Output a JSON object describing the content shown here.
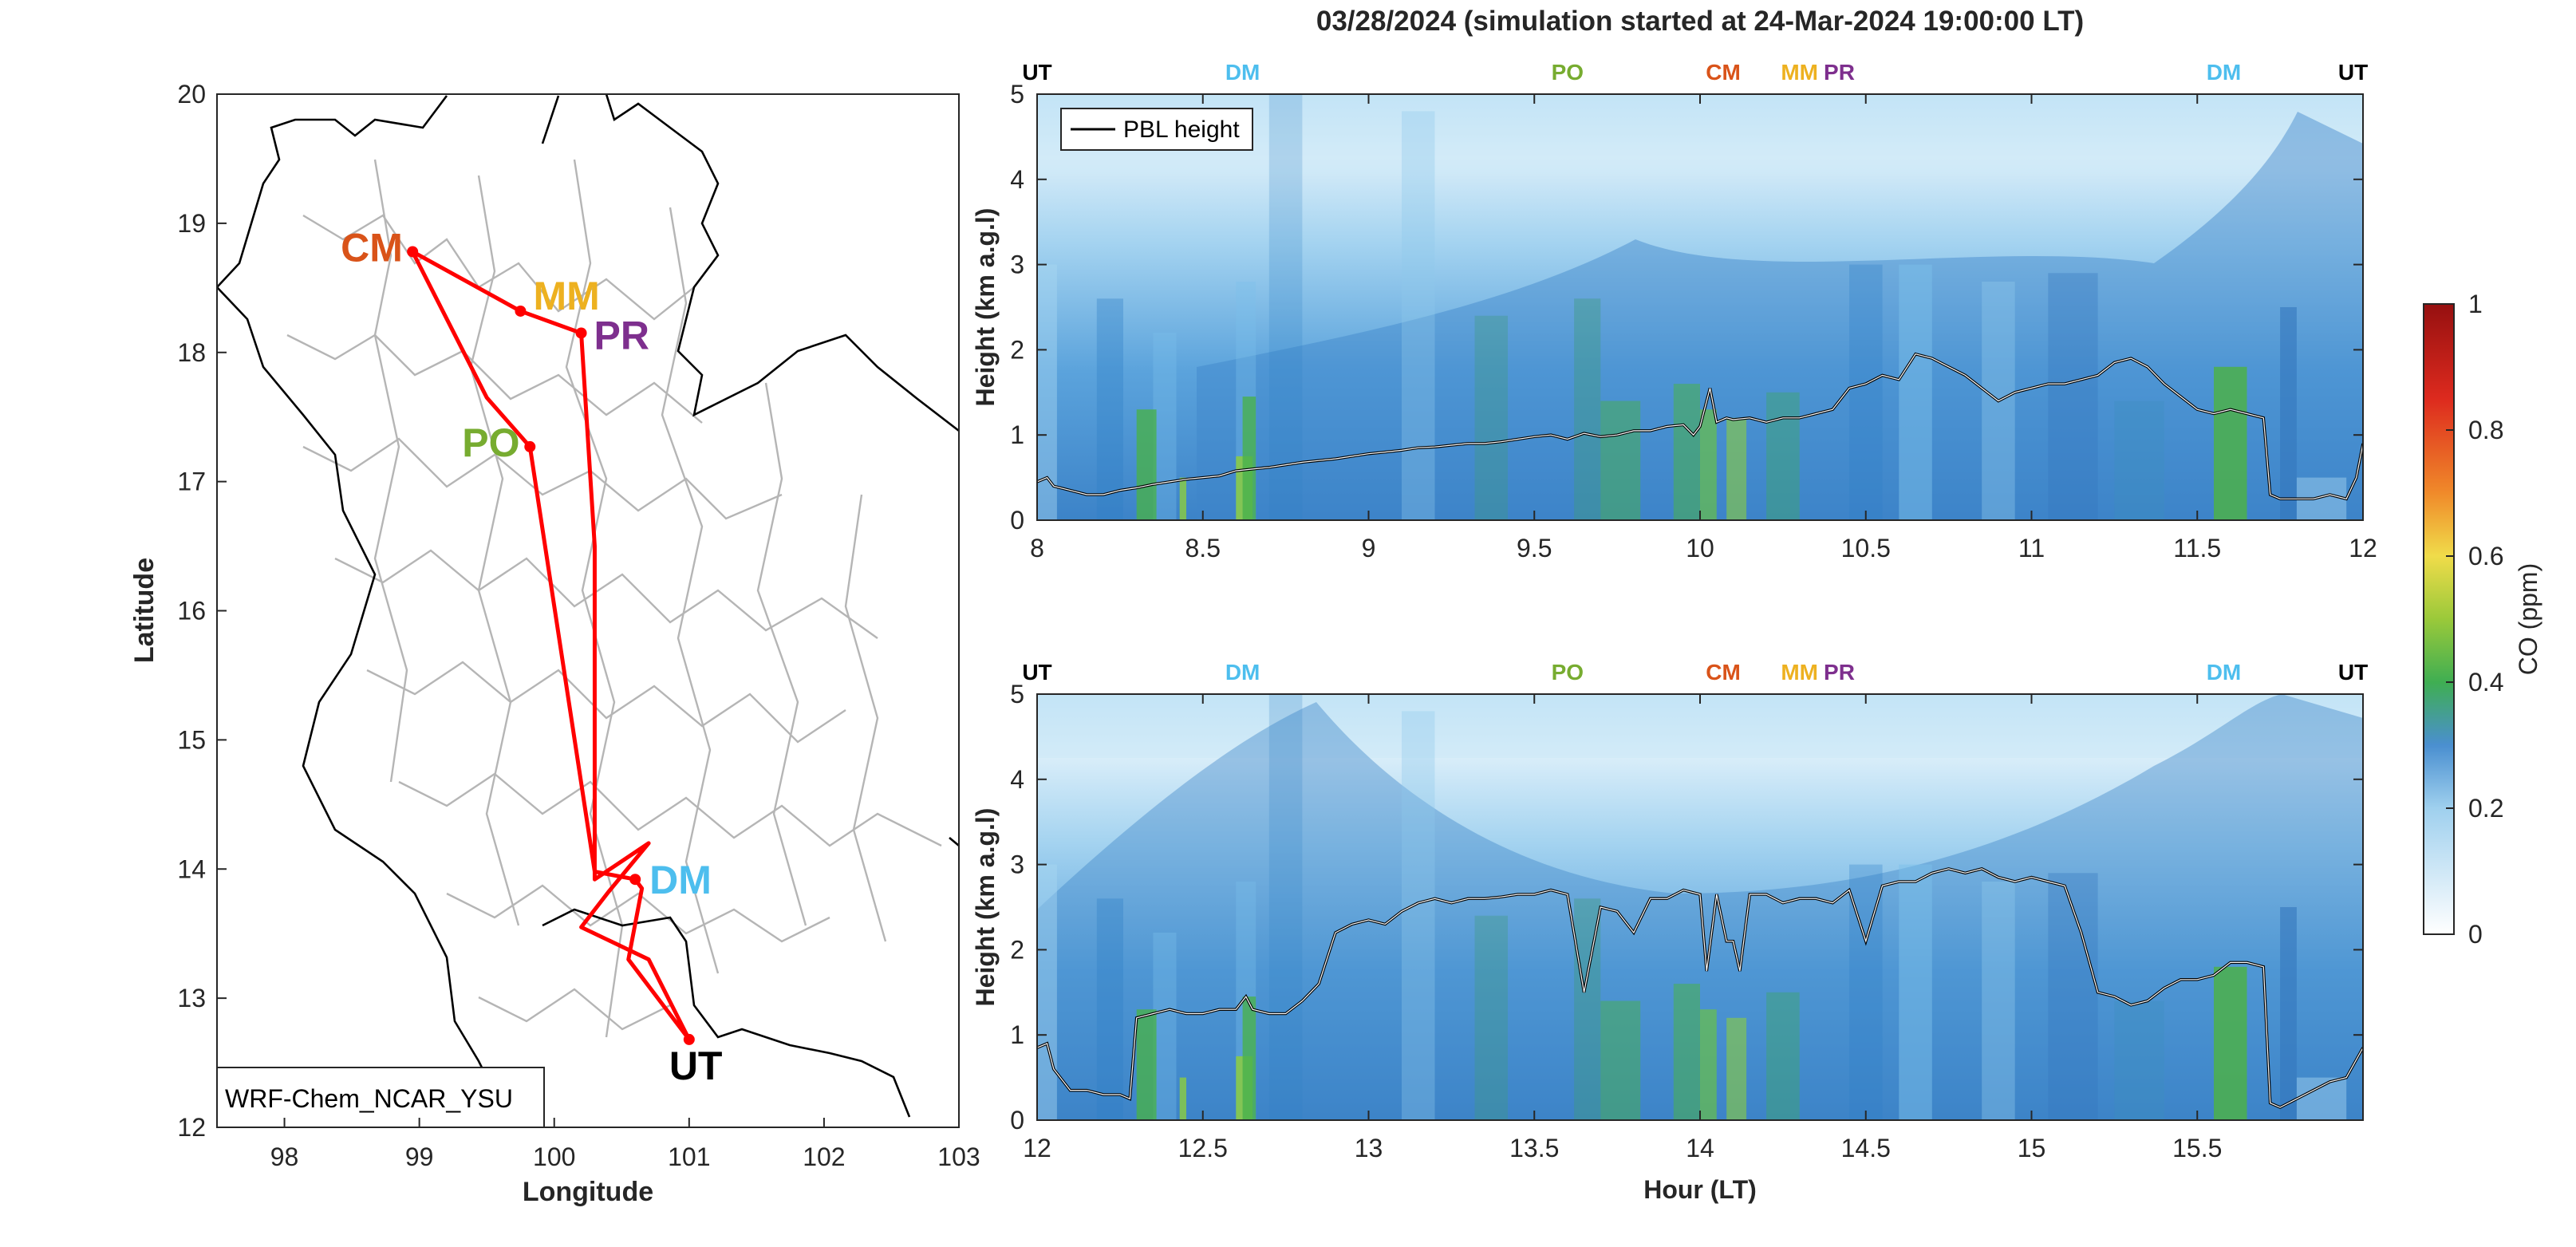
{
  "figure_title": "03/28/2024 (simulation started at 24-Mar-2024 19:00:00 LT)",
  "colors": {
    "CM": "#D95319",
    "MM": "#EDB120",
    "PR": "#7E2F8E",
    "PO": "#77AC30",
    "DM": "#4DBEEE",
    "UT": "#000000",
    "track": "#FF0000",
    "pbl": "#000000"
  },
  "chart_data": [
    {
      "type": "scatter",
      "subtype": "map",
      "xlabel": "Longitude",
      "ylabel": "Latitude",
      "xlim": [
        97.5,
        103
      ],
      "ylim": [
        12,
        20
      ],
      "xticks": [
        "98",
        "99",
        "100",
        "101",
        "102",
        "103"
      ],
      "yticks": [
        "12",
        "13",
        "14",
        "15",
        "16",
        "17",
        "18",
        "19",
        "20"
      ],
      "model_label": "WRF-Chem_NCAR_YSU",
      "sites": [
        {
          "name": "CM",
          "lon": 98.95,
          "lat": 18.78
        },
        {
          "name": "MM",
          "lon": 99.75,
          "lat": 18.32
        },
        {
          "name": "PR",
          "lon": 100.2,
          "lat": 18.15
        },
        {
          "name": "PO",
          "lon": 99.82,
          "lat": 17.27
        },
        {
          "name": "DM",
          "lon": 100.6,
          "lat": 13.92
        },
        {
          "name": "UT",
          "lon": 101.0,
          "lat": 12.68
        }
      ],
      "track": [
        [
          101.0,
          12.68
        ],
        [
          100.55,
          13.3
        ],
        [
          100.65,
          13.85
        ],
        [
          100.6,
          13.92
        ],
        [
          100.3,
          13.98
        ],
        [
          99.82,
          17.27
        ],
        [
          99.5,
          17.65
        ],
        [
          98.95,
          18.78
        ],
        [
          99.75,
          18.32
        ],
        [
          100.2,
          18.15
        ],
        [
          100.3,
          16.5
        ],
        [
          100.3,
          13.92
        ],
        [
          100.7,
          14.2
        ],
        [
          100.4,
          13.82
        ],
        [
          100.2,
          13.55
        ],
        [
          100.4,
          13.45
        ],
        [
          100.7,
          13.3
        ],
        [
          101.0,
          12.68
        ]
      ]
    },
    {
      "type": "heatmap",
      "ylabel": "Height (km a.g.l)",
      "xlim": [
        8,
        12
      ],
      "ylim": [
        0,
        5
      ],
      "xticks": [
        "8",
        "8.5",
        "9",
        "9.5",
        "10",
        "10.5",
        "11",
        "11.5",
        "12"
      ],
      "yticks": [
        "0",
        "1",
        "2",
        "3",
        "4",
        "5"
      ],
      "legend": "PBL height",
      "top_labels": [
        {
          "text": "UT",
          "x": 8.0
        },
        {
          "text": "DM",
          "x": 8.62
        },
        {
          "text": "PO",
          "x": 9.6
        },
        {
          "text": "CM",
          "x": 10.07
        },
        {
          "text": "MM",
          "x": 10.3
        },
        {
          "text": "PR",
          "x": 10.42
        },
        {
          "text": "DM",
          "x": 11.58
        },
        {
          "text": "UT",
          "x": 11.97
        }
      ],
      "pbl_height": {
        "x": [
          8.0,
          8.03,
          8.05,
          8.1,
          8.15,
          8.2,
          8.25,
          8.3,
          8.35,
          8.4,
          8.45,
          8.5,
          8.55,
          8.6,
          8.65,
          8.7,
          8.75,
          8.8,
          8.85,
          8.9,
          8.95,
          9.0,
          9.05,
          9.1,
          9.15,
          9.2,
          9.25,
          9.3,
          9.35,
          9.4,
          9.45,
          9.5,
          9.55,
          9.6,
          9.65,
          9.7,
          9.75,
          9.8,
          9.85,
          9.9,
          9.95,
          9.98,
          10.0,
          10.03,
          10.05,
          10.08,
          10.1,
          10.15,
          10.2,
          10.25,
          10.3,
          10.35,
          10.4,
          10.45,
          10.5,
          10.55,
          10.6,
          10.65,
          10.7,
          10.75,
          10.8,
          10.85,
          10.9,
          10.95,
          11.0,
          11.05,
          11.1,
          11.15,
          11.2,
          11.25,
          11.3,
          11.35,
          11.4,
          11.45,
          11.5,
          11.55,
          11.6,
          11.65,
          11.7,
          11.72,
          11.75,
          11.8,
          11.85,
          11.9,
          11.95,
          11.98,
          12.0
        ],
        "y": [
          0.45,
          0.5,
          0.4,
          0.35,
          0.3,
          0.3,
          0.35,
          0.38,
          0.42,
          0.45,
          0.48,
          0.5,
          0.52,
          0.58,
          0.6,
          0.62,
          0.65,
          0.68,
          0.7,
          0.72,
          0.75,
          0.78,
          0.8,
          0.82,
          0.85,
          0.86,
          0.88,
          0.9,
          0.9,
          0.92,
          0.95,
          0.98,
          1.0,
          0.95,
          1.02,
          0.98,
          1.0,
          1.05,
          1.05,
          1.1,
          1.12,
          1.0,
          1.1,
          1.55,
          1.15,
          1.2,
          1.18,
          1.2,
          1.15,
          1.2,
          1.2,
          1.25,
          1.3,
          1.55,
          1.6,
          1.7,
          1.65,
          1.95,
          1.9,
          1.8,
          1.7,
          1.55,
          1.4,
          1.5,
          1.55,
          1.6,
          1.6,
          1.65,
          1.7,
          1.85,
          1.9,
          1.8,
          1.6,
          1.45,
          1.3,
          1.25,
          1.3,
          1.25,
          1.2,
          0.3,
          0.25,
          0.25,
          0.25,
          0.3,
          0.25,
          0.5,
          0.9
        ]
      }
    },
    {
      "type": "heatmap",
      "xlabel": "Hour (LT)",
      "ylabel": "Height (km a.g.l)",
      "xlim": [
        12,
        16
      ],
      "ylim": [
        0,
        5
      ],
      "xticks": [
        "12",
        "12.5",
        "13",
        "13.5",
        "14",
        "14.5",
        "15",
        "15.5"
      ],
      "yticks": [
        "0",
        "1",
        "2",
        "3",
        "4",
        "5"
      ],
      "top_labels": [
        {
          "text": "UT",
          "x": 12.0
        },
        {
          "text": "DM",
          "x": 12.62
        },
        {
          "text": "PO",
          "x": 13.6
        },
        {
          "text": "CM",
          "x": 14.07
        },
        {
          "text": "MM",
          "x": 14.3
        },
        {
          "text": "PR",
          "x": 14.42
        },
        {
          "text": "DM",
          "x": 15.58
        },
        {
          "text": "UT",
          "x": 15.97
        }
      ],
      "pbl_height": {
        "x": [
          12.0,
          12.03,
          12.05,
          12.1,
          12.15,
          12.2,
          12.25,
          12.28,
          12.3,
          12.35,
          12.4,
          12.45,
          12.5,
          12.55,
          12.6,
          12.63,
          12.65,
          12.7,
          12.75,
          12.8,
          12.85,
          12.9,
          12.95,
          13.0,
          13.05,
          13.1,
          13.15,
          13.2,
          13.25,
          13.3,
          13.35,
          13.4,
          13.45,
          13.5,
          13.55,
          13.6,
          13.65,
          13.7,
          13.75,
          13.8,
          13.85,
          13.9,
          13.95,
          14.0,
          14.02,
          14.05,
          14.08,
          14.1,
          14.12,
          14.15,
          14.2,
          14.25,
          14.3,
          14.35,
          14.4,
          14.45,
          14.5,
          14.55,
          14.6,
          14.65,
          14.7,
          14.75,
          14.8,
          14.85,
          14.9,
          14.95,
          15.0,
          15.05,
          15.1,
          15.15,
          15.2,
          15.25,
          15.3,
          15.35,
          15.4,
          15.45,
          15.5,
          15.55,
          15.6,
          15.65,
          15.7,
          15.72,
          15.75,
          15.8,
          15.85,
          15.9,
          15.95,
          16.0
        ],
        "y": [
          0.85,
          0.9,
          0.6,
          0.35,
          0.35,
          0.3,
          0.3,
          0.25,
          1.2,
          1.25,
          1.3,
          1.25,
          1.25,
          1.3,
          1.3,
          1.45,
          1.3,
          1.25,
          1.25,
          1.4,
          1.6,
          2.2,
          2.3,
          2.35,
          2.3,
          2.45,
          2.55,
          2.6,
          2.55,
          2.6,
          2.6,
          2.62,
          2.65,
          2.65,
          2.7,
          2.65,
          1.5,
          2.5,
          2.45,
          2.2,
          2.6,
          2.6,
          2.7,
          2.65,
          1.75,
          2.65,
          2.1,
          2.1,
          1.75,
          2.65,
          2.65,
          2.55,
          2.6,
          2.6,
          2.55,
          2.7,
          2.1,
          2.75,
          2.8,
          2.8,
          2.9,
          2.95,
          2.9,
          2.95,
          2.85,
          2.8,
          2.85,
          2.8,
          2.75,
          2.2,
          1.5,
          1.45,
          1.35,
          1.4,
          1.55,
          1.65,
          1.65,
          1.7,
          1.85,
          1.85,
          1.8,
          0.2,
          0.15,
          0.25,
          0.35,
          0.45,
          0.5,
          0.85
        ]
      }
    },
    {
      "type": "colorbar",
      "label": "CO (ppm)",
      "range": [
        0,
        1
      ],
      "ticks": [
        "0",
        "0.2",
        "0.4",
        "0.6",
        "0.8",
        "1"
      ]
    }
  ]
}
